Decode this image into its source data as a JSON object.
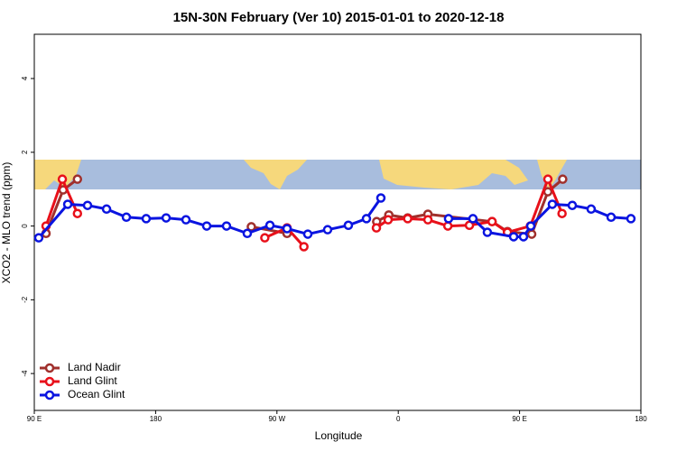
{
  "chart_data": {
    "type": "line",
    "title": "15N-30N February (Ver 10)   2015-01-01 to 2020-12-18",
    "xlabel": "Longitude",
    "ylabel": "XCO2 - MLO trend (ppm)",
    "xlim": [
      90,
      540
    ],
    "ylim": [
      -5,
      5.2
    ],
    "xticks": [
      {
        "value": 90,
        "label": "90 E"
      },
      180,
      {
        "value": 270,
        "label": "90 W"
      },
      {
        "value": 360,
        "label": "0"
      },
      {
        "value": 450,
        "label": "90 E"
      },
      {
        "value": 540,
        "label": "180"
      }
    ],
    "yticks": [
      -4,
      -2,
      0,
      2,
      4
    ],
    "legend": "bottom-left",
    "series": [
      {
        "name": "Land Nadir",
        "color": "#a0302c",
        "x": [
          98.7,
          111.4,
          122,
          null,
          251,
          277.5,
          null,
          344,
          353,
          367,
          382,
          429.6,
          441,
          459,
          471,
          482
        ],
        "values": [
          -0.2,
          0.98,
          1.27,
          null,
          -0.02,
          -0.2,
          null,
          0.12,
          0.3,
          0.22,
          0.32,
          0.12,
          -0.15,
          -0.22,
          0.93,
          1.27
        ]
      },
      {
        "name": "Land Glint",
        "color": "#e8101a",
        "x": [
          98.7,
          110.8,
          122,
          null,
          261,
          277.5,
          290,
          null,
          343.8,
          352.5,
          367,
          382,
          396.8,
          412.8,
          429.6,
          441,
          458,
          471,
          481.5
        ],
        "values": [
          0,
          1.27,
          0.34,
          null,
          -0.32,
          -0.05,
          -0.56,
          null,
          -0.05,
          0.17,
          0.2,
          0.17,
          0,
          0.02,
          0.12,
          -0.17,
          0,
          1.27,
          0.34
        ]
      },
      {
        "name": "Ocean Glint",
        "color": "#0a14e0",
        "x": [
          93.3,
          114.8,
          129.5,
          143.6,
          158.3,
          173,
          187.8,
          202.5,
          217.9,
          232.6,
          248,
          264.8,
          277.5,
          292.9,
          307.6,
          323,
          336.4,
          347.1,
          null,
          397.3,
          415.4,
          426.1,
          445.6,
          452.9,
          458.3,
          474.3,
          489.1,
          503.1,
          517.9,
          532.6
        ],
        "values": [
          -0.32,
          0.59,
          0.56,
          0.46,
          0.24,
          0.2,
          0.22,
          0.17,
          0,
          0,
          -0.2,
          0.02,
          -0.07,
          -0.22,
          -0.1,
          0.02,
          0.2,
          0.76,
          null,
          0.2,
          0.2,
          -0.17,
          -0.29,
          -0.29,
          0,
          0.59,
          0.56,
          0.46,
          0.24,
          0.2
        ]
      }
    ]
  }
}
